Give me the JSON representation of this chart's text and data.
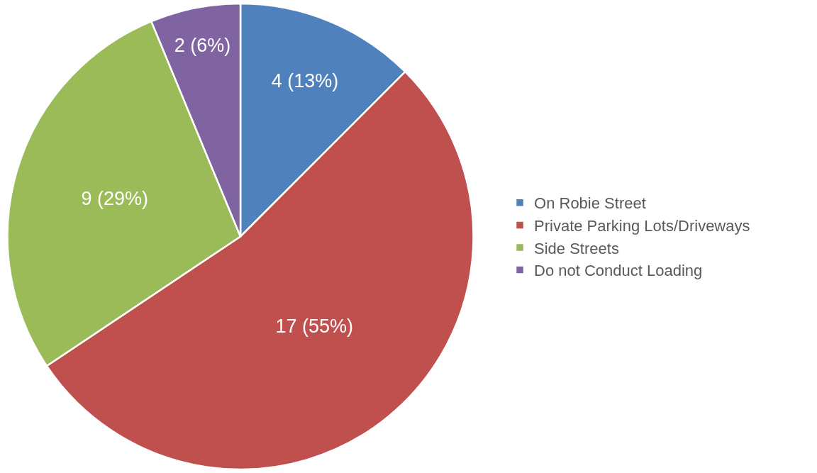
{
  "chart_data": {
    "type": "pie",
    "categories": [
      "On Robie Street",
      "Private Parking Lots/Driveways",
      "Side Streets",
      "Do not Conduct Loading"
    ],
    "values": [
      4,
      17,
      9,
      2
    ],
    "value_labels": [
      "4 (13%)",
      "17 (55%)",
      "9 (29%)",
      "2 (6%)"
    ],
    "colors": [
      "#4f81bd",
      "#c0504d",
      "#9bbb59",
      "#8064a2"
    ],
    "legend": "right"
  }
}
